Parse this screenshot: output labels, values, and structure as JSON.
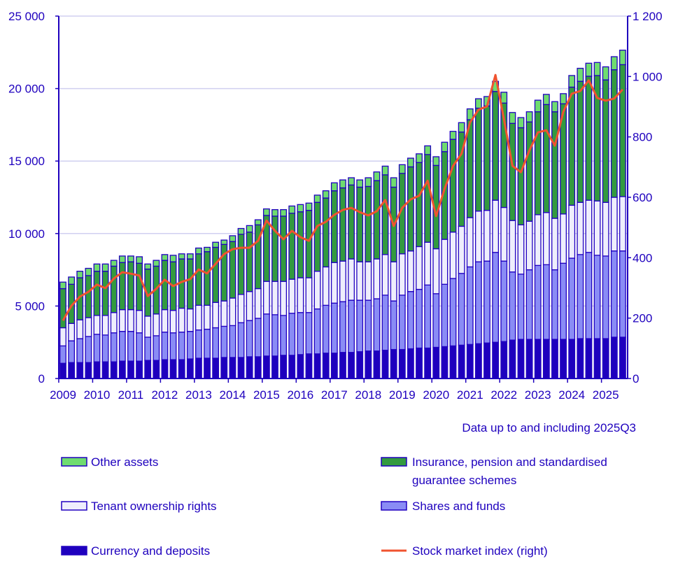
{
  "chart_data": {
    "type": "bar",
    "stacked": true,
    "note": "Data up to and including 2025Q3",
    "categories": [
      "2009Q1",
      "2009Q2",
      "2009Q3",
      "2009Q4",
      "2010Q1",
      "2010Q2",
      "2010Q3",
      "2010Q4",
      "2011Q1",
      "2011Q2",
      "2011Q3",
      "2011Q4",
      "2012Q1",
      "2012Q2",
      "2012Q3",
      "2012Q4",
      "2013Q1",
      "2013Q2",
      "2013Q3",
      "2013Q4",
      "2014Q1",
      "2014Q2",
      "2014Q3",
      "2014Q4",
      "2015Q1",
      "2015Q2",
      "2015Q3",
      "2015Q4",
      "2016Q1",
      "2016Q2",
      "2016Q3",
      "2016Q4",
      "2017Q1",
      "2017Q2",
      "2017Q3",
      "2017Q4",
      "2018Q1",
      "2018Q2",
      "2018Q3",
      "2018Q4",
      "2019Q1",
      "2019Q2",
      "2019Q3",
      "2019Q4",
      "2020Q1",
      "2020Q2",
      "2020Q3",
      "2020Q4",
      "2021Q1",
      "2021Q2",
      "2021Q3",
      "2021Q4",
      "2022Q1",
      "2022Q2",
      "2022Q3",
      "2022Q4",
      "2023Q1",
      "2023Q2",
      "2023Q3",
      "2023Q4",
      "2024Q1",
      "2024Q2",
      "2024Q3",
      "2024Q4",
      "2025Q1",
      "2025Q2",
      "2025Q3"
    ],
    "x_tick_labels": [
      "2009",
      "2010",
      "2011",
      "2012",
      "2013",
      "2014",
      "2015",
      "2016",
      "2017",
      "2018",
      "2019",
      "2020",
      "2021",
      "2022",
      "2023",
      "2024",
      "2025"
    ],
    "y_left": {
      "range": [
        0,
        25000
      ],
      "ticks": [
        0,
        5000,
        10000,
        15000,
        20000,
        25000
      ],
      "tick_labels": [
        "0",
        "5 000",
        "10 000",
        "15 000",
        "20 000",
        "25 000"
      ]
    },
    "y_right": {
      "range": [
        0,
        1200
      ],
      "ticks": [
        0,
        200,
        400,
        600,
        800,
        1000,
        1200
      ],
      "tick_labels": [
        "0",
        "200",
        "400",
        "600",
        "800",
        "1 000",
        "1 200"
      ]
    },
    "grid": true,
    "legend_placement": "bottom",
    "series": [
      {
        "name": "Currency and deposits",
        "color": "#1e00be",
        "values": [
          1050,
          1100,
          1100,
          1100,
          1150,
          1150,
          1150,
          1200,
          1200,
          1200,
          1250,
          1250,
          1300,
          1300,
          1300,
          1350,
          1400,
          1400,
          1400,
          1450,
          1450,
          1450,
          1500,
          1500,
          1550,
          1550,
          1600,
          1600,
          1650,
          1700,
          1700,
          1750,
          1750,
          1800,
          1800,
          1850,
          1900,
          1900,
          1950,
          2000,
          2000,
          2050,
          2100,
          2100,
          2150,
          2200,
          2250,
          2300,
          2350,
          2400,
          2450,
          2500,
          2550,
          2650,
          2700,
          2700,
          2700,
          2700,
          2700,
          2700,
          2700,
          2750,
          2750,
          2750,
          2750,
          2850,
          2850
        ]
      },
      {
        "name": "Shares and funds",
        "color": "#8a8cf5",
        "values": [
          1200,
          1500,
          1650,
          1800,
          1900,
          1850,
          2000,
          2050,
          2050,
          1950,
          1600,
          1700,
          1900,
          1850,
          1900,
          1900,
          1950,
          2000,
          2100,
          2150,
          2200,
          2400,
          2500,
          2650,
          2900,
          2850,
          2750,
          2900,
          2900,
          2850,
          3100,
          3300,
          3450,
          3500,
          3600,
          3550,
          3500,
          3600,
          3800,
          3350,
          3750,
          3950,
          4050,
          4350,
          3700,
          4300,
          4650,
          4950,
          5350,
          5650,
          5650,
          6200,
          5550,
          4700,
          4500,
          4800,
          5100,
          5150,
          4800,
          5250,
          5600,
          5800,
          5950,
          5750,
          5700,
          5950,
          5950
        ]
      },
      {
        "name": "Tenant ownership rights",
        "color": "#eeeefc",
        "values": [
          1250,
          1200,
          1300,
          1300,
          1300,
          1350,
          1400,
          1500,
          1500,
          1550,
          1450,
          1500,
          1550,
          1550,
          1650,
          1550,
          1700,
          1650,
          1750,
          1750,
          1900,
          1950,
          2000,
          2050,
          2250,
          2300,
          2350,
          2350,
          2400,
          2400,
          2600,
          2650,
          2800,
          2800,
          2850,
          2650,
          2650,
          2750,
          2800,
          2700,
          2850,
          2800,
          2950,
          2950,
          3100,
          3100,
          3200,
          3250,
          3400,
          3500,
          3500,
          3600,
          3700,
          3550,
          3400,
          3350,
          3500,
          3600,
          3550,
          3400,
          3650,
          3600,
          3600,
          3750,
          3700,
          3700,
          3750
        ]
      },
      {
        "name": "Insurance, pension and standardised guarantee schemes",
        "color": "#339a3f",
        "values": [
          2700,
          2700,
          2900,
          2900,
          3050,
          3050,
          3200,
          3250,
          3300,
          3250,
          3250,
          3300,
          3400,
          3350,
          3400,
          3450,
          3550,
          3700,
          3800,
          3900,
          3900,
          4150,
          4100,
          4400,
          4550,
          4500,
          4500,
          4550,
          4550,
          4650,
          4750,
          4750,
          4950,
          5050,
          5100,
          5150,
          5200,
          5400,
          5500,
          5150,
          5550,
          5800,
          5800,
          6050,
          5750,
          6050,
          6400,
          6500,
          6750,
          7100,
          7200,
          7500,
          7200,
          6700,
          6700,
          6850,
          7100,
          7450,
          7350,
          7600,
          8150,
          8350,
          8550,
          8650,
          8450,
          8800,
          9100
        ]
      },
      {
        "name": "Other assets",
        "color": "#6fdc6f",
        "values": [
          450,
          500,
          450,
          500,
          500,
          500,
          400,
          450,
          400,
          450,
          350,
          400,
          400,
          450,
          350,
          350,
          400,
          300,
          350,
          300,
          400,
          400,
          450,
          350,
          450,
          450,
          450,
          500,
          500,
          500,
          500,
          500,
          550,
          550,
          500,
          500,
          600,
          600,
          600,
          650,
          600,
          600,
          600,
          600,
          600,
          650,
          550,
          650,
          750,
          650,
          650,
          700,
          750,
          750,
          700,
          700,
          800,
          700,
          700,
          700,
          800,
          900,
          900,
          900,
          900,
          900,
          1000
        ]
      }
    ],
    "line_series": {
      "name": "Stock market index (right)",
      "axis": "right",
      "color": "#f0532f",
      "values": [
        192,
        241,
        271,
        287,
        311,
        299,
        331,
        352,
        347,
        341,
        273,
        297,
        327,
        306,
        320,
        329,
        361,
        348,
        380,
        412,
        428,
        433,
        433,
        456,
        523,
        489,
        461,
        489,
        468,
        456,
        505,
        519,
        542,
        558,
        565,
        551,
        540,
        554,
        591,
        505,
        565,
        593,
        605,
        655,
        538,
        628,
        704,
        744,
        848,
        890,
        901,
        1005,
        859,
        704,
        683,
        755,
        815,
        822,
        771,
        883,
        943,
        952,
        987,
        929,
        920,
        927,
        957
      ]
    },
    "outline_color": "#2000c0",
    "grid_color": "#d0cff0"
  },
  "legend": {
    "other": "Other assets",
    "insurance_line1": "Insurance, pension and standardised",
    "insurance_line2": "guarantee schemes",
    "tenant": "Tenant ownership rights",
    "shares": "Shares and funds",
    "currency": "Currency and deposits",
    "index": "Stock market index (right)"
  }
}
